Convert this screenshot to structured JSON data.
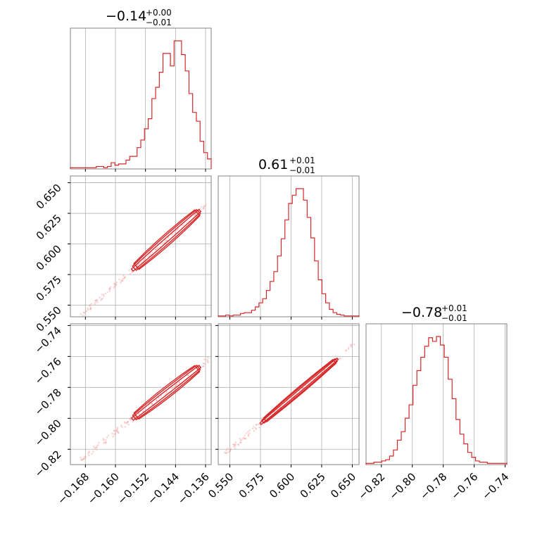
{
  "chart_data": {
    "type": "corner",
    "color": "#d62728",
    "grid": true,
    "parameters": [
      {
        "title": "−0.14",
        "title_sup": "+0.00",
        "title_sub": "−0.01",
        "range": [
          -0.172,
          -0.1345
        ],
        "ticks": [
          -0.168,
          -0.16,
          -0.152,
          -0.144,
          -0.136
        ],
        "tick_labels": [
          "−0.168",
          "−0.160",
          "−0.152",
          "−0.144",
          "−0.136"
        ],
        "hist_counts": [
          1,
          1,
          1,
          1,
          1,
          1,
          1,
          2,
          2,
          1,
          2,
          5,
          3,
          4,
          4,
          7,
          10,
          10,
          17,
          23,
          32,
          40,
          56,
          65,
          77,
          92,
          92,
          82,
          102,
          102,
          91,
          78,
          60,
          45,
          38,
          22,
          13,
          8
        ],
        "hist_max": 102
      },
      {
        "title": "0.61",
        "title_sup": "+0.01",
        "title_sub": "−0.01",
        "range": [
          0.5405,
          0.6555
        ],
        "ticks": [
          0.55,
          0.575,
          0.6,
          0.625,
          0.65
        ],
        "tick_labels": [
          "0.550",
          "0.575",
          "0.600",
          "0.625",
          "0.650"
        ],
        "hist_counts": [
          1,
          1,
          2,
          1,
          2,
          2,
          4,
          5,
          5,
          8,
          12,
          17,
          22,
          32,
          43,
          55,
          74,
          95,
          118,
          138,
          148,
          156,
          156,
          142,
          121,
          96,
          68,
          45,
          28,
          17,
          9,
          5,
          3,
          2,
          1,
          1,
          1,
          1
        ],
        "hist_max": 156
      },
      {
        "title": "−0.78",
        "title_sup": "+0.01",
        "title_sub": "−0.01",
        "range": [
          -0.8299,
          -0.7389
        ],
        "ticks": [
          -0.82,
          -0.8,
          -0.78,
          -0.76,
          -0.74
        ],
        "tick_labels": [
          "−0.82",
          "−0.80",
          "−0.78",
          "−0.76",
          "−0.74"
        ],
        "hist_counts": [
          1,
          1,
          2,
          2,
          3,
          4,
          7,
          12,
          20,
          27,
          38,
          49,
          65,
          77,
          88,
          97,
          104,
          101,
          105,
          98,
          88,
          70,
          54,
          37,
          25,
          17,
          10,
          6,
          3,
          2,
          2,
          1,
          1,
          1,
          1,
          1
        ],
        "hist_max": 105
      }
    ],
    "scatter_pairs": [
      {
        "x_param": 0,
        "y_param": 1
      },
      {
        "x_param": 0,
        "y_param": 2
      },
      {
        "x_param": 1,
        "y_param": 2
      }
    ]
  }
}
